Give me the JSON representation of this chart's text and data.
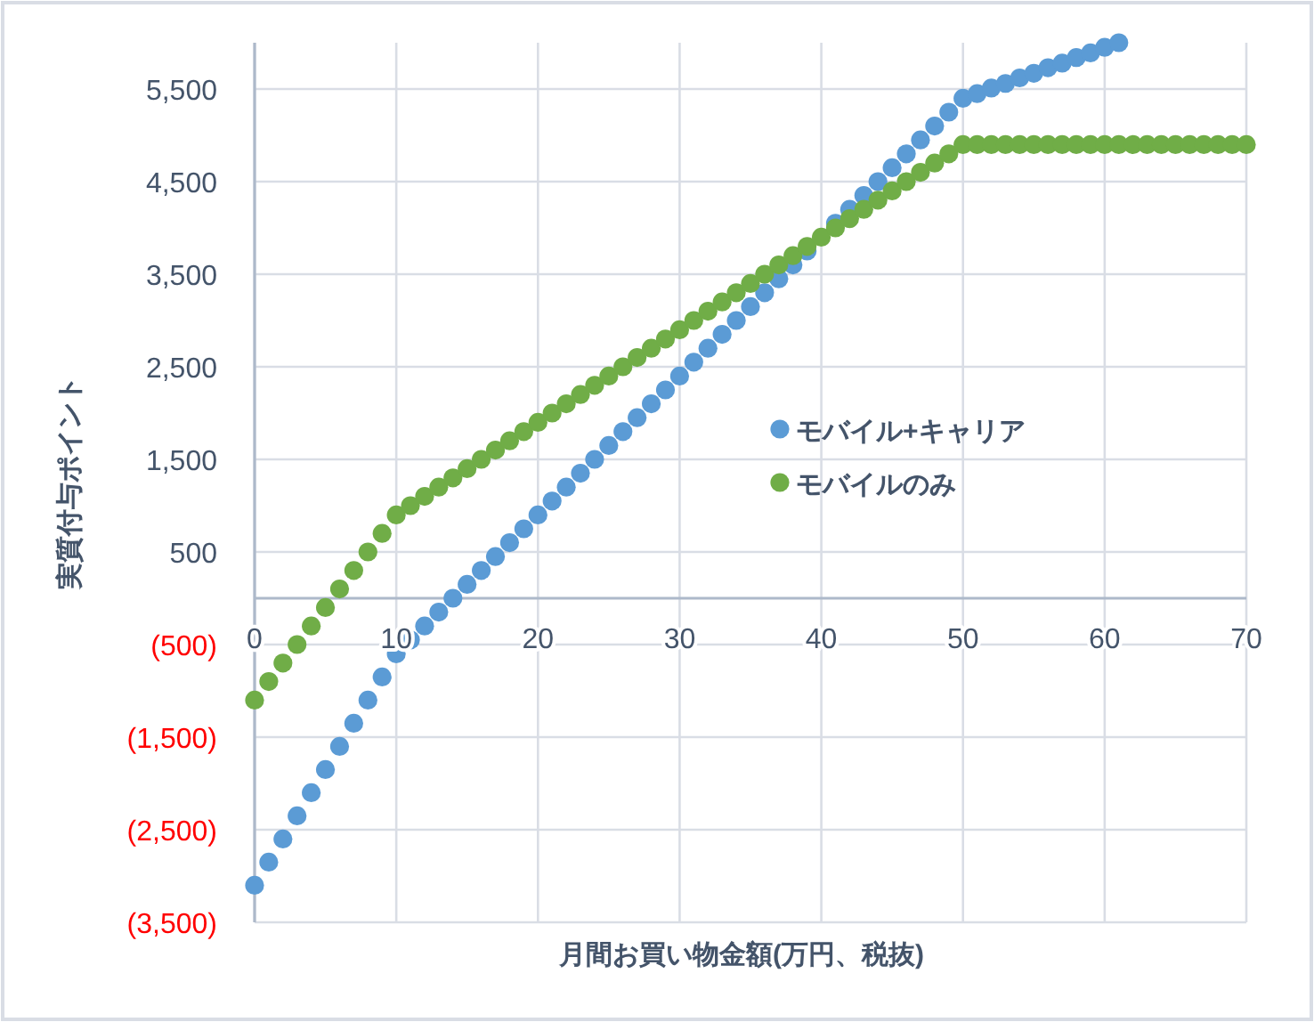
{
  "chart_data": {
    "type": "scatter",
    "xlabel": "月間お買い物金額(万円、税抜)",
    "ylabel": "実質付与ポイント",
    "xlim": [
      0,
      70
    ],
    "xticks": [
      0,
      10,
      20,
      30,
      40,
      50,
      60,
      70
    ],
    "ylim": [
      -3500,
      6000
    ],
    "yticks": [
      {
        "value": 5500,
        "label": "5,500"
      },
      {
        "value": 4500,
        "label": "4,500"
      },
      {
        "value": 3500,
        "label": "3,500"
      },
      {
        "value": 2500,
        "label": "2,500"
      },
      {
        "value": 1500,
        "label": "1,500"
      },
      500,
      {
        "value": -500,
        "label": "(500)"
      },
      {
        "value": -1500,
        "label": "(1,500)"
      },
      {
        "value": -2500,
        "label": "(2,500)"
      },
      {
        "value": -3500,
        "label": "(3,500)"
      }
    ],
    "grid": true,
    "legend": "right",
    "marker": "circle",
    "series": [
      {
        "name": "モバイル+キャリア",
        "color": "#5b9bd5",
        "x": [
          0,
          1,
          2,
          3,
          4,
          5,
          6,
          7,
          8,
          9,
          10,
          11,
          12,
          13,
          14,
          15,
          16,
          17,
          18,
          19,
          20,
          21,
          22,
          23,
          24,
          25,
          26,
          27,
          28,
          29,
          30,
          31,
          32,
          33,
          34,
          35,
          36,
          37,
          38,
          39,
          41,
          42,
          43,
          44,
          45,
          46,
          47,
          48,
          49,
          50,
          51,
          52,
          53,
          54,
          55,
          56,
          57,
          58,
          59,
          60,
          61
        ],
        "values": [
          -3100,
          -2850,
          -2600,
          -2350,
          -2100,
          -1850,
          -1600,
          -1350,
          -1100,
          -850,
          -600,
          -450,
          -300,
          -150,
          0,
          150,
          300,
          450,
          600,
          750,
          900,
          1050,
          1200,
          1350,
          1500,
          1650,
          1800,
          1950,
          2100,
          2250,
          2400,
          2550,
          2700,
          2850,
          3000,
          3150,
          3300,
          3450,
          3600,
          3750,
          4050,
          4200,
          4350,
          4500,
          4650,
          4800,
          4950,
          5100,
          5250,
          5400,
          5450,
          5510,
          5560,
          5620,
          5670,
          5730,
          5780,
          5840,
          5890,
          5950,
          6000
        ]
      },
      {
        "name": "モバイルのみ",
        "color": "#70ad47",
        "x": [
          0,
          1,
          2,
          3,
          4,
          5,
          6,
          7,
          8,
          9,
          10,
          11,
          12,
          13,
          14,
          15,
          16,
          17,
          18,
          19,
          20,
          21,
          22,
          23,
          24,
          25,
          26,
          27,
          28,
          29,
          30,
          31,
          32,
          33,
          34,
          35,
          36,
          37,
          38,
          39,
          40,
          41,
          42,
          43,
          44,
          45,
          46,
          47,
          48,
          49,
          50,
          51,
          52,
          53,
          54,
          55,
          56,
          57,
          58,
          59,
          60,
          61,
          62,
          63,
          64,
          65,
          66,
          67,
          68,
          69,
          70
        ],
        "values": [
          -1100,
          -900,
          -700,
          -500,
          -300,
          -100,
          100,
          300,
          500,
          700,
          900,
          1000,
          1100,
          1200,
          1300,
          1400,
          1500,
          1600,
          1700,
          1800,
          1900,
          2000,
          2100,
          2200,
          2300,
          2400,
          2500,
          2600,
          2700,
          2800,
          2900,
          3000,
          3100,
          3200,
          3300,
          3400,
          3500,
          3600,
          3700,
          3800,
          3900,
          4000,
          4100,
          4200,
          4300,
          4400,
          4500,
          4600,
          4700,
          4800,
          4900,
          4900,
          4900,
          4900,
          4900,
          4900,
          4900,
          4900,
          4900,
          4900,
          4900,
          4900,
          4900,
          4900,
          4900,
          4900,
          4900,
          4900,
          4900,
          4900,
          4900
        ]
      }
    ]
  }
}
